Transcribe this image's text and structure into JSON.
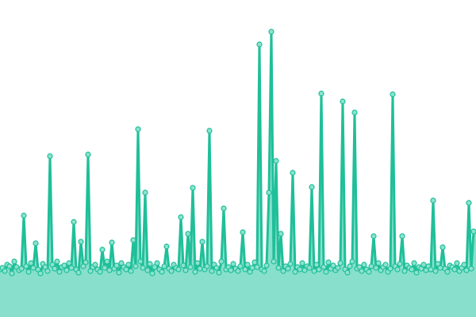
{
  "chart_data": {
    "type": "area",
    "title": "",
    "xlabel": "",
    "ylabel": "",
    "grid": false,
    "legend": "none",
    "ylim": [
      0,
      400
    ],
    "colors": {
      "line": "#1fbf99",
      "fill": "#88e0cc",
      "marker_fill": "#8de2cf",
      "marker_stroke": "#1fbf99"
    },
    "values": [
      60,
      62,
      58,
      66,
      64,
      55,
      70,
      63,
      59,
      61,
      128,
      64,
      57,
      68,
      62,
      93,
      60,
      55,
      67,
      63,
      58,
      203,
      66,
      61,
      70,
      57,
      63,
      65,
      59,
      68,
      62,
      120,
      60,
      56,
      95,
      64,
      69,
      205,
      58,
      63,
      66,
      60,
      57,
      85,
      62,
      70,
      59,
      94,
      61,
      65,
      56,
      68,
      63,
      60,
      66,
      58,
      97,
      64,
      237,
      70,
      62,
      157,
      59,
      67,
      55,
      63,
      68,
      60,
      57,
      64,
      89,
      61,
      58,
      66,
      62,
      60,
      126,
      65,
      59,
      105,
      63,
      163,
      57,
      68,
      61,
      95,
      60,
      64,
      235,
      58,
      66,
      62,
      56,
      70,
      137,
      60,
      63,
      59,
      67,
      61,
      58,
      64,
      107,
      60,
      66,
      57,
      62,
      69,
      63,
      344,
      60,
      58,
      65,
      157,
      360,
      70,
      197,
      62,
      105,
      58,
      64,
      61,
      67,
      182,
      57,
      63,
      60,
      68,
      59,
      64,
      62,
      164,
      58,
      66,
      60,
      282,
      63,
      57,
      69,
      61,
      65,
      59,
      62,
      68,
      272,
      60,
      56,
      64,
      70,
      258,
      61,
      63,
      58,
      66,
      60,
      57,
      64,
      102,
      62,
      68,
      59,
      63,
      66,
      57,
      61,
      281,
      64,
      60,
      67,
      102,
      58,
      65,
      62,
      60,
      68,
      56,
      63,
      61,
      66,
      59,
      64,
      60,
      147,
      58,
      67,
      62,
      88,
      61,
      57,
      65,
      63,
      60,
      68,
      58,
      62,
      66,
      59,
      144,
      61,
      108
    ]
  }
}
